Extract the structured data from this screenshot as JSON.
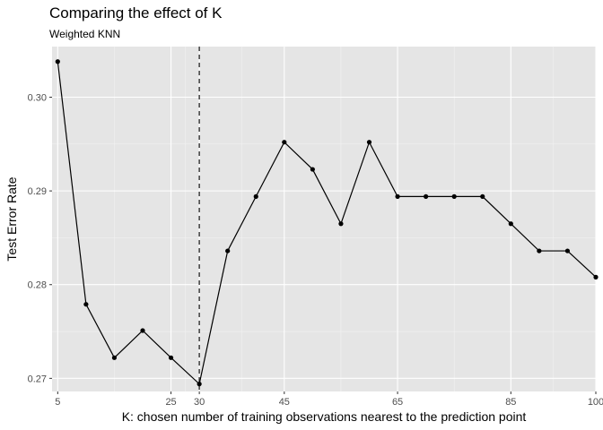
{
  "chart_data": {
    "type": "line",
    "title": "Comparing the effect of K",
    "subtitle": "Weighted KNN",
    "xlabel": "K: chosen number of training observations nearest to the prediction point",
    "ylabel": "Test Error Rate",
    "xlim": [
      4,
      100
    ],
    "ylim": [
      0.2686,
      0.3054
    ],
    "x_ticks": [
      5,
      25,
      30,
      45,
      65,
      85,
      100
    ],
    "y_ticks": [
      0.27,
      0.28,
      0.29,
      0.3
    ],
    "y_tick_labels": [
      "0.27",
      "0.28",
      "0.29",
      "0.30"
    ],
    "grid": true,
    "reference_line": {
      "x": 30,
      "style": "dashed"
    },
    "series": [
      {
        "x": [
          5,
          10,
          15,
          20,
          25,
          30,
          35,
          40,
          45,
          50,
          55,
          60,
          65,
          70,
          75,
          80,
          85,
          90,
          95,
          100
        ],
        "values": [
          0.3038,
          0.2779,
          0.2722,
          0.2751,
          0.2722,
          0.2694,
          0.2836,
          0.2894,
          0.2952,
          0.2923,
          0.2865,
          0.2952,
          0.2894,
          0.2894,
          0.2894,
          0.2894,
          0.2865,
          0.2836,
          0.2836,
          0.2808
        ]
      }
    ]
  }
}
